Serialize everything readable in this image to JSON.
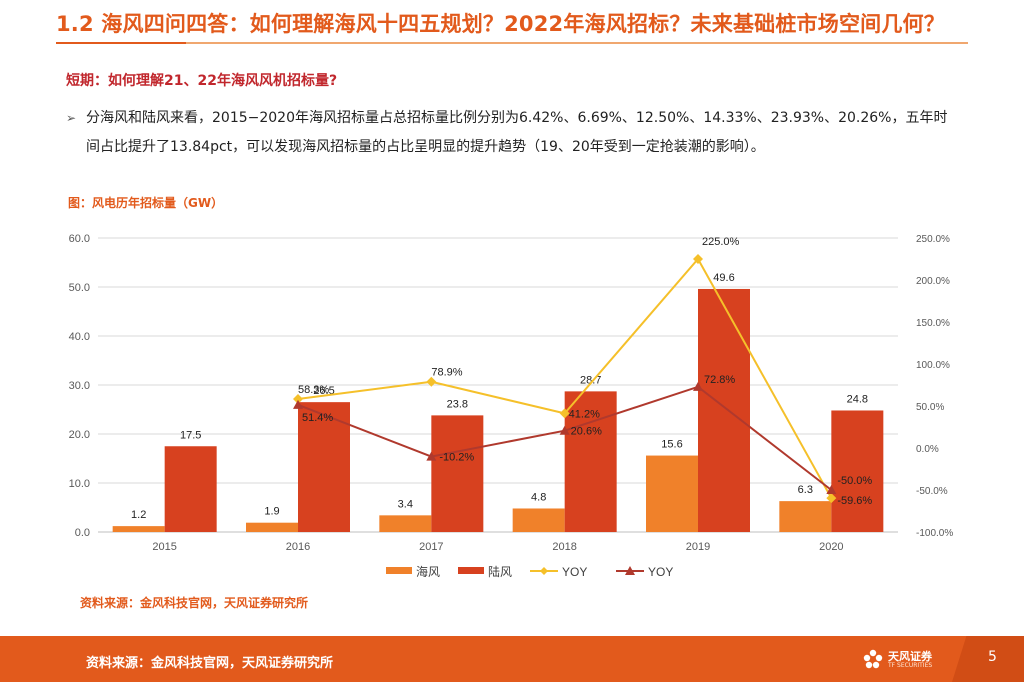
{
  "title": "1.2 海风四问四答：如何理解海风十四五规划？2022年海风招标？未来基础桩市场空间几何？",
  "subheading": "短期：如何理解21、22年海风风机招标量?",
  "bullet": {
    "arrow": "➢",
    "text": "分海风和陆风来看，2015−2020年海风招标量占总招标量比例分别为6.42%、6.69%、12.50%、14.33%、23.93%、20.26%，五年时间占比提升了13.84pct，可以发现海风招标量的占比呈明显的提升趋势（19、20年受到一定抢装潮的影响）。"
  },
  "figure_title": "图：风电历年招标量（GW）",
  "source_inline": "资料来源：金风科技官网，天风证券研究所",
  "footer": {
    "source": "资料来源：金风科技官网，天风证券研究所",
    "logo_text": "天风证券",
    "logo_sub": "TF SECURITIES",
    "page_number": "5"
  },
  "colors": {
    "offshore": "#f0812a",
    "onshore": "#d7411f",
    "yoy_offshore": "#f5c02a",
    "yoy_onshore": "#b0392d",
    "brand": "#e25a1c"
  },
  "chart_data": {
    "type": "bar",
    "title": "风电历年招标量（GW）",
    "categories": [
      "2015",
      "2016",
      "2017",
      "2018",
      "2019",
      "2020"
    ],
    "series": [
      {
        "name": "海风",
        "type": "bar",
        "axis": "left",
        "values": [
          1.2,
          1.9,
          3.4,
          4.8,
          15.6,
          6.3
        ],
        "labels": [
          "1.2",
          "1.9",
          "3.4",
          "4.8",
          "15.6",
          "6.3"
        ]
      },
      {
        "name": "陆风",
        "type": "bar",
        "axis": "left",
        "values": [
          17.5,
          26.5,
          23.8,
          28.7,
          49.6,
          24.8
        ],
        "labels": [
          "17.5",
          "26.5",
          "23.8",
          "28.7",
          "49.6",
          "24.8"
        ]
      },
      {
        "name": "YOY",
        "type": "line",
        "axis": "right",
        "marker": "diamond",
        "values": [
          null,
          58.3,
          78.9,
          41.2,
          225.0,
          -59.6
        ],
        "labels": [
          "",
          "58.3%",
          "78.9%",
          "41.2%",
          "225.0%",
          "-59.6%"
        ]
      },
      {
        "name": "YOY",
        "type": "line",
        "axis": "right",
        "marker": "triangle",
        "values": [
          null,
          51.4,
          -10.2,
          20.6,
          72.8,
          -50.0
        ],
        "labels": [
          "",
          "51.4%",
          "-10.2%",
          "20.6%",
          "72.8%",
          "-50.0%"
        ]
      }
    ],
    "y_left": {
      "min": 0,
      "max": 60,
      "ticks": [
        "0.0",
        "10.0",
        "20.0",
        "30.0",
        "40.0",
        "50.0",
        "60.0"
      ]
    },
    "y_right": {
      "min": -100,
      "max": 250,
      "ticks": [
        "-100.0%",
        "-50.0%",
        "0.0%",
        "50.0%",
        "100.0%",
        "150.0%",
        "200.0%",
        "250.0%"
      ]
    },
    "grid": true,
    "legend": "bottom"
  }
}
